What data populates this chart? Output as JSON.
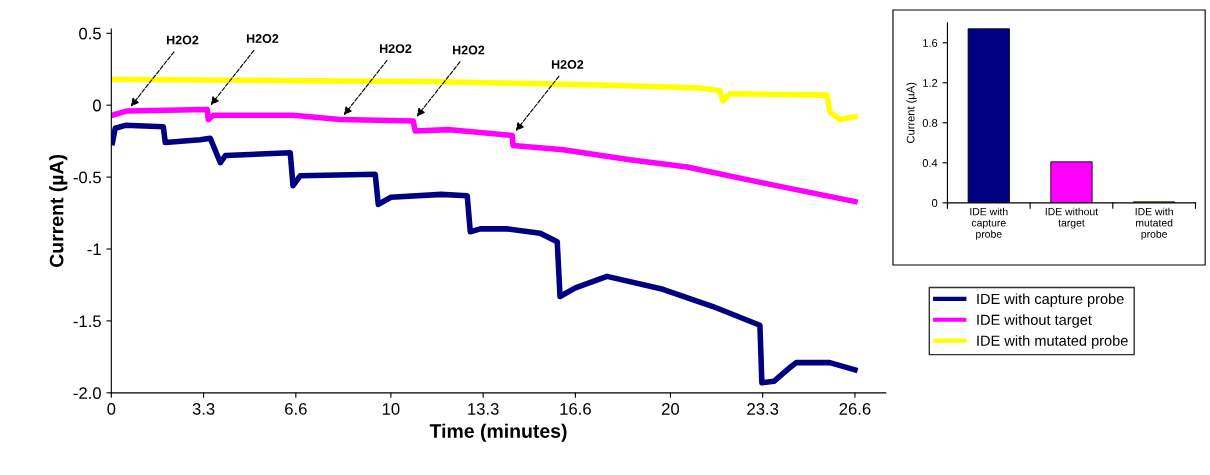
{
  "chart_data": [
    {
      "type": "line",
      "xlabel": "Time (minutes)",
      "ylabel": "Current (µA)",
      "xlim": [
        0,
        27.7
      ],
      "ylim": [
        -2.0,
        0.53
      ],
      "xticks": [
        0,
        3.3,
        6.6,
        10,
        13.3,
        16.6,
        20,
        23.3,
        26.6
      ],
      "yticks": [
        {
          "value": -2.0,
          "label": "-2.0"
        },
        {
          "value": -1.5,
          "label": "-1.5"
        },
        {
          "value": -1,
          "label": "-1"
        },
        {
          "value": -0.5,
          "label": "-0.5"
        },
        {
          "value": 0,
          "label": "0"
        },
        {
          "value": 0.5,
          "label": "0.5"
        }
      ],
      "grid": false,
      "legend": "right",
      "marker": "none",
      "line_style": "solid",
      "series": [
        {
          "name": "IDE with capture probe",
          "color": "#000080",
          "x": [
            0.04,
            0.14,
            0.5,
            1.86,
            1.93,
            3.18,
            3.54,
            3.9,
            4.08,
            6.4,
            6.5,
            6.76,
            9.44,
            9.55,
            10.0,
            11.8,
            12.73,
            12.84,
            13.2,
            14.16,
            15.34,
            15.95,
            16.05,
            16.6,
            17.73,
            19.73,
            21.52,
            23.2,
            23.27,
            23.7,
            24.3,
            24.5,
            25.7,
            26.6
          ],
          "values": [
            -0.26,
            -0.16,
            -0.14,
            -0.15,
            -0.26,
            -0.24,
            -0.23,
            -0.4,
            -0.35,
            -0.33,
            -0.56,
            -0.49,
            -0.48,
            -0.69,
            -0.64,
            -0.62,
            -0.63,
            -0.88,
            -0.86,
            -0.86,
            -0.89,
            -0.95,
            -1.33,
            -1.27,
            -1.19,
            -1.28,
            -1.4,
            -1.53,
            -1.93,
            -1.92,
            -1.82,
            -1.79,
            -1.79,
            -1.84
          ]
        },
        {
          "name": "IDE without target",
          "color": "#ff00ff",
          "x": [
            0.04,
            0.57,
            3.43,
            3.47,
            3.65,
            6.5,
            8.19,
            10.8,
            10.87,
            12.1,
            12.6,
            14.34,
            14.37,
            16.16,
            18.55,
            20.6,
            23.3,
            26.6
          ],
          "values": [
            -0.07,
            -0.04,
            -0.03,
            -0.1,
            -0.07,
            -0.07,
            -0.1,
            -0.11,
            -0.18,
            -0.17,
            -0.18,
            -0.21,
            -0.28,
            -0.31,
            -0.38,
            -0.43,
            -0.54,
            -0.67
          ]
        },
        {
          "name": "IDE with mutated probe",
          "color": "#ffff00",
          "x": [
            0.04,
            6.76,
            11.4,
            17.48,
            21.06,
            21.77,
            21.88,
            22.13,
            25.6,
            25.71,
            26.07,
            26.6
          ],
          "values": [
            0.18,
            0.17,
            0.165,
            0.14,
            0.12,
            0.1,
            0.03,
            0.08,
            0.07,
            -0.05,
            -0.1,
            -0.08
          ]
        }
      ],
      "annotations": [
        {
          "text": "H2O2",
          "x": 0.57,
          "y": -0.04
        },
        {
          "text": "H2O2",
          "x": 3.43,
          "y": -0.03
        },
        {
          "text": "H2O2",
          "x": 8.19,
          "y": -0.1
        },
        {
          "text": "H2O2",
          "x": 10.8,
          "y": -0.11
        },
        {
          "text": "H2O2",
          "x": 14.34,
          "y": -0.21
        }
      ]
    },
    {
      "type": "bar",
      "ylabel": "Current (µA)",
      "categories": [
        "IDE with\ncapture\nprobe",
        "IDE without\ntarget",
        "IDE with\nmutated\nprobe"
      ],
      "values": [
        1.74,
        0.41,
        0.01
      ],
      "colors": [
        "#000080",
        "#ff00ff",
        "#ffff00"
      ],
      "ylim": [
        0,
        1.8
      ],
      "yticks": [
        0,
        0.4,
        0.8,
        1.2,
        1.6
      ],
      "grid": false,
      "legend": false
    }
  ]
}
